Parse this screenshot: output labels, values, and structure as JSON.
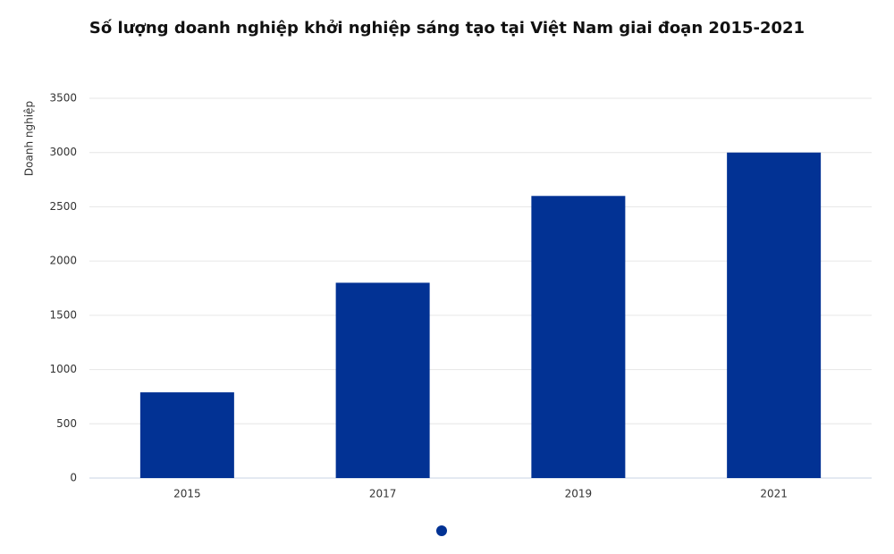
{
  "chart_data": {
    "type": "bar",
    "title": "Số lượng doanh nghiệp khởi nghiệp sáng tạo tại Việt Nam giai đoạn 2015-2021",
    "y_label": "Doanh nghiệp",
    "categories": [
      "2015",
      "2017",
      "2019",
      "2021"
    ],
    "values": [
      790,
      1800,
      2600,
      3000
    ],
    "color": "#023294",
    "ylim": [
      0,
      3500
    ],
    "yticks": [
      0,
      500,
      1000,
      1500,
      2000,
      2500,
      3000,
      3500
    ],
    "grid": true
  }
}
